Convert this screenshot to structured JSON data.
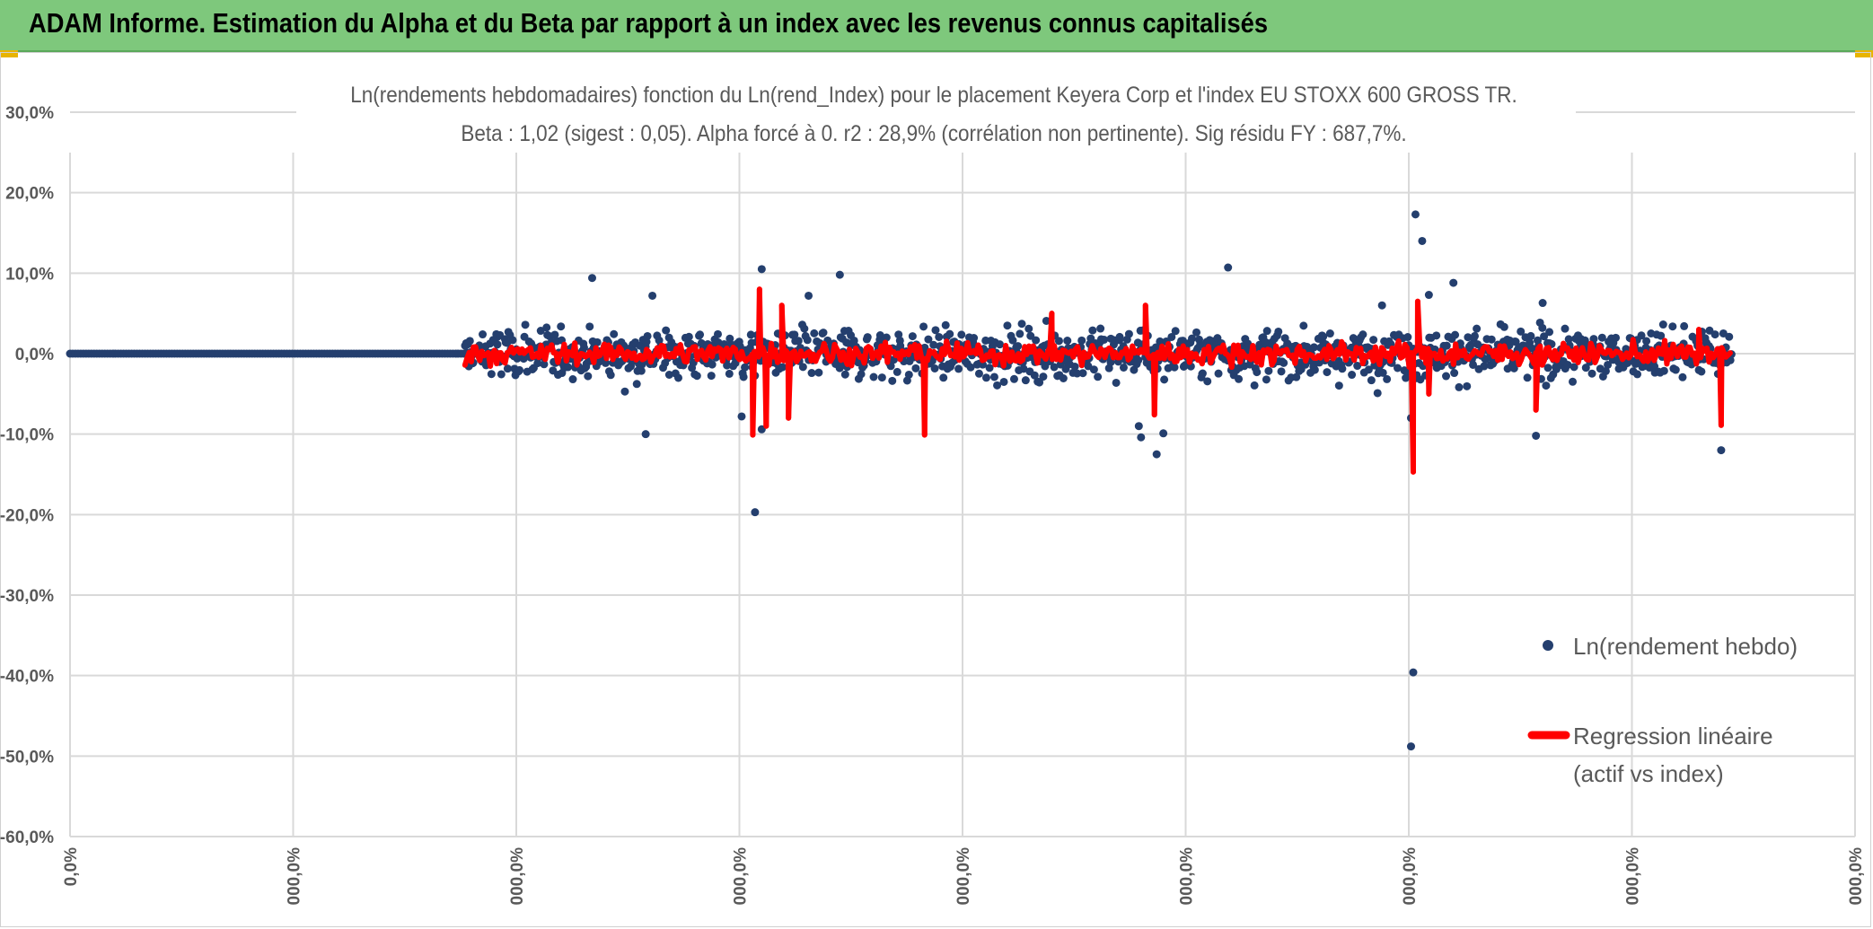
{
  "header": {
    "title": "ADAM Informe. Estimation du Alpha et du Beta par rapport à un index avec les revenus connus capitalisés"
  },
  "colors": {
    "banner": "#7ec87c",
    "scatter": "#243f6e",
    "regression": "#ff0000",
    "grid": "#d9d9d9",
    "text": "#595959"
  },
  "chart_data": {
    "type": "scatter",
    "title": "Ln(rendements hebdomadaires) fonction du Ln(rend_Index) pour le placement Keyera Corp et l'index EU STOXX 600 GROSS TR.",
    "subtitle": "Beta : 1,02 (sigest : 0,05). Alpha forcé à 0. r2 : 28,9% (corrélation non pertinente). Sig résidu FY : 687,7%.",
    "xlabel": "",
    "ylabel": "",
    "ylim": [
      -0.6,
      0.3
    ],
    "xlim": [
      0,
      8
    ],
    "y_ticks": [
      "30,0%",
      "20,0%",
      "10,0%",
      "0,0%",
      "-10,0%",
      "-20,0%",
      "-30,0%",
      "-40,0%",
      "-50,0%",
      "-60,0%"
    ],
    "y_tick_values": [
      0.3,
      0.2,
      0.1,
      0.0,
      -0.1,
      -0.2,
      -0.3,
      -0.4,
      -0.5,
      -0.6
    ],
    "x_ticks": [
      "0,0%",
      "000,0%",
      "000,0%",
      "000,0%",
      "000,0%",
      "000,0%",
      "000,0%",
      "000,0%",
      "000,0%"
    ],
    "x_tick_values": [
      0,
      1,
      2,
      3,
      4,
      5,
      6,
      7,
      8
    ],
    "grid": true,
    "legend_position": "right",
    "series": [
      {
        "name": "Ln(rendement hebdo)",
        "kind": "scatter",
        "zero_segment": [
          0,
          1.77
        ],
        "data_range": [
          1.77,
          7.45
        ],
        "typical_spread": 0.035,
        "outliers": [
          [
            3.07,
            -0.197
          ],
          [
            6.03,
            0.173
          ],
          [
            6.06,
            0.14
          ],
          [
            6.02,
            -0.396
          ],
          [
            6.01,
            -0.488
          ],
          [
            5.19,
            0.107
          ],
          [
            4.87,
            -0.125
          ],
          [
            4.9,
            -0.099
          ],
          [
            4.8,
            -0.104
          ],
          [
            4.79,
            -0.09
          ],
          [
            7.4,
            -0.12
          ],
          [
            2.58,
            -0.1
          ],
          [
            2.61,
            0.072
          ],
          [
            3.1,
            0.105
          ],
          [
            3.45,
            0.098
          ],
          [
            2.34,
            0.094
          ],
          [
            6.09,
            0.073
          ],
          [
            6.2,
            0.088
          ],
          [
            6.01,
            -0.08
          ],
          [
            6.57,
            -0.102
          ],
          [
            3.1,
            -0.094
          ],
          [
            3.01,
            -0.078
          ],
          [
            6.6,
            0.063
          ],
          [
            5.88,
            0.06
          ],
          [
            3.31,
            0.072
          ]
        ]
      },
      {
        "name": "Regression linéaire (actif vs index)",
        "kind": "line",
        "beta": 1.02,
        "spikes": [
          [
            3.06,
            -0.101
          ],
          [
            3.09,
            0.08
          ],
          [
            3.12,
            -0.09
          ],
          [
            3.22,
            -0.08
          ],
          [
            3.19,
            0.06
          ],
          [
            3.83,
            -0.101
          ],
          [
            4.4,
            0.05
          ],
          [
            4.86,
            -0.076
          ],
          [
            4.82,
            0.06
          ],
          [
            6.02,
            -0.147
          ],
          [
            6.04,
            0.065
          ],
          [
            6.09,
            -0.05
          ],
          [
            6.57,
            -0.07
          ],
          [
            7.4,
            -0.089
          ],
          [
            7.3,
            0.03
          ]
        ]
      }
    ],
    "legend": {
      "items": [
        {
          "label_lines": [
            "Ln(rendement hebdo)"
          ]
        },
        {
          "label_lines": [
            "Regression linéaire",
            "(actif vs index)"
          ]
        }
      ]
    }
  }
}
